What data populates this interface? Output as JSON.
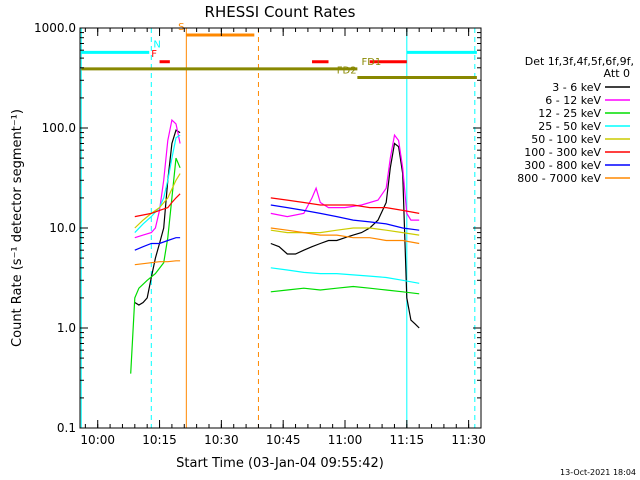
{
  "chart_data": {
    "type": "line",
    "title": "RHESSI Count Rates",
    "xlabel": "Start Time (03-Jan-04 09:55:42)",
    "ylabel": "Count Rate (s⁻¹ detector segment⁻¹)",
    "yscale": "log",
    "ylim": [
      0.1,
      1000
    ],
    "xlim": [
      "09:55:42",
      "11:33:00"
    ],
    "x_ticks": [
      "10:00",
      "10:15",
      "10:30",
      "10:45",
      "11:00",
      "11:15",
      "11:30"
    ],
    "y_ticks": [
      "0.1",
      "1.0",
      "10.0",
      "100.0",
      "1000.0"
    ],
    "legend_position": "right",
    "legend_header": "Det 1f,3f,4f,5f,6f,9f,",
    "legend_subheader": "Att 0",
    "timestamp": "13-Oct-2021 18:04",
    "series": [
      {
        "name": "3 - 6 keV",
        "color": "#000000",
        "segments": [
          {
            "x": [
              "10:09:00",
              "10:10:00",
              "10:11:00",
              "10:12:00",
              "10:13:00",
              "10:14:00",
              "10:15:00",
              "10:16:00",
              "10:17:00",
              "10:18:00",
              "10:19:00",
              "10:20:00"
            ],
            "y": [
              1.8,
              1.7,
              1.8,
              2.0,
              3.2,
              5.0,
              7.0,
              10.0,
              30.0,
              70.0,
              95.0,
              90.0
            ]
          },
          {
            "x": [
              "10:42:00",
              "10:44:00",
              "10:46:00",
              "10:48:00",
              "10:50:00",
              "10:52:00",
              "10:54:00",
              "10:56:00",
              "10:58:00",
              "11:00:00",
              "11:02:00",
              "11:04:00",
              "11:06:00",
              "11:08:00",
              "11:10:00",
              "11:11:00",
              "11:12:00",
              "11:13:00",
              "11:14:00",
              "11:15:00",
              "11:16:00",
              "11:17:00",
              "11:18:00"
            ],
            "y": [
              7.0,
              6.5,
              5.5,
              5.5,
              6.0,
              6.5,
              7.0,
              7.5,
              7.5,
              8.0,
              8.5,
              9.0,
              10.0,
              12.0,
              18.0,
              40.0,
              70.0,
              65.0,
              35.0,
              2.0,
              1.2,
              1.1,
              1.0
            ]
          }
        ]
      },
      {
        "name": "6 - 12 keV",
        "color": "#ff00ff",
        "segments": [
          {
            "x": [
              "10:09:00",
              "10:11:00",
              "10:13:00",
              "10:14:00",
              "10:15:00",
              "10:16:00",
              "10:17:00",
              "10:18:00",
              "10:19:00",
              "10:20:00"
            ],
            "y": [
              8.0,
              8.5,
              9.0,
              10.0,
              15.0,
              30.0,
              75.0,
              120.0,
              110.0,
              70.0
            ]
          },
          {
            "x": [
              "10:42:00",
              "10:46:00",
              "10:50:00",
              "10:52:00",
              "10:53:00",
              "10:54:00",
              "10:56:00",
              "11:00:00",
              "11:04:00",
              "11:08:00",
              "11:10:00",
              "11:11:00",
              "11:12:00",
              "11:13:00",
              "11:14:00",
              "11:15:00",
              "11:16:00",
              "11:18:00"
            ],
            "y": [
              14.0,
              13.0,
              14.0,
              20.0,
              25.0,
              18.0,
              16.0,
              16.0,
              17.0,
              19.0,
              25.0,
              50.0,
              85.0,
              75.0,
              40.0,
              14.0,
              12.0,
              12.0
            ]
          }
        ]
      },
      {
        "name": "12 - 25 keV",
        "color": "#00dd00",
        "segments": [
          {
            "x": [
              "10:08:00",
              "10:09:00",
              "10:10:00",
              "10:12:00",
              "10:14:00",
              "10:16:00",
              "10:17:00",
              "10:18:00",
              "10:19:00",
              "10:20:00"
            ],
            "y": [
              0.35,
              2.0,
              2.5,
              3.0,
              3.5,
              4.5,
              8.0,
              20.0,
              50.0,
              40.0
            ]
          },
          {
            "x": [
              "10:42:00",
              "10:46:00",
              "10:50:00",
              "10:54:00",
              "10:58:00",
              "11:02:00",
              "11:06:00",
              "11:10:00",
              "11:14:00",
              "11:18:00"
            ],
            "y": [
              2.3,
              2.4,
              2.5,
              2.4,
              2.5,
              2.6,
              2.5,
              2.4,
              2.3,
              2.2
            ]
          }
        ]
      },
      {
        "name": "25 - 50 keV",
        "color": "#00ffff",
        "segments": [
          {
            "x": [
              "10:09:00",
              "10:11:00",
              "10:13:00",
              "10:15:00",
              "10:16:00",
              "10:17:00",
              "10:18:00",
              "10:19:00",
              "10:20:00"
            ],
            "y": [
              9.0,
              11.0,
              13.0,
              16.0,
              20.0,
              30.0,
              50.0,
              80.0,
              85.0
            ]
          },
          {
            "x": [
              "10:42:00",
              "10:46:00",
              "10:50:00",
              "10:54:00",
              "10:58:00",
              "11:02:00",
              "11:06:00",
              "11:10:00",
              "11:14:00",
              "11:18:00"
            ],
            "y": [
              4.0,
              3.8,
              3.6,
              3.5,
              3.5,
              3.4,
              3.3,
              3.2,
              3.0,
              2.8
            ]
          }
        ]
      },
      {
        "name": "50 - 100 keV",
        "color": "#cccc00",
        "segments": [
          {
            "x": [
              "10:09:00",
              "10:11:00",
              "10:13:00",
              "10:15:00",
              "10:17:00",
              "10:19:00",
              "10:20:00"
            ],
            "y": [
              10.0,
              12.0,
              14.0,
              16.0,
              20.0,
              30.0,
              35.0
            ]
          },
          {
            "x": [
              "10:42:00",
              "10:46:00",
              "10:50:00",
              "10:54:00",
              "10:58:00",
              "11:02:00",
              "11:06:00",
              "11:10:00",
              "11:14:00",
              "11:18:00"
            ],
            "y": [
              9.5,
              9.0,
              9.0,
              9.0,
              9.5,
              10.0,
              10.0,
              9.5,
              9.0,
              8.5
            ]
          }
        ]
      },
      {
        "name": "100 - 300 keV",
        "color": "#ff0000",
        "segments": [
          {
            "x": [
              "10:09:00",
              "10:11:00",
              "10:13:00",
              "10:15:00",
              "10:17:00",
              "10:18:00",
              "10:19:00",
              "10:20:00"
            ],
            "y": [
              13.0,
              13.5,
              14.0,
              15.0,
              16.0,
              18.0,
              20.0,
              22.0
            ]
          },
          {
            "x": [
              "10:42:00",
              "10:46:00",
              "10:50:00",
              "10:54:00",
              "10:58:00",
              "11:02:00",
              "11:06:00",
              "11:10:00",
              "11:14:00",
              "11:18:00"
            ],
            "y": [
              20.0,
              19.0,
              18.0,
              17.0,
              17.0,
              17.0,
              16.0,
              16.0,
              15.0,
              14.0
            ]
          }
        ]
      },
      {
        "name": "300 - 800 keV",
        "color": "#0000ff",
        "segments": [
          {
            "x": [
              "10:09:00",
              "10:11:00",
              "10:13:00",
              "10:15:00",
              "10:17:00",
              "10:19:00",
              "10:20:00"
            ],
            "y": [
              6.0,
              6.5,
              7.0,
              7.0,
              7.5,
              8.0,
              8.0
            ]
          },
          {
            "x": [
              "10:42:00",
              "10:46:00",
              "10:50:00",
              "10:54:00",
              "10:58:00",
              "11:02:00",
              "11:06:00",
              "11:10:00",
              "11:14:00",
              "11:18:00"
            ],
            "y": [
              17.0,
              16.0,
              15.0,
              14.0,
              13.0,
              12.0,
              11.5,
              11.0,
              10.0,
              9.5
            ]
          }
        ]
      },
      {
        "name": "800 - 7000 keV",
        "color": "#ff8800",
        "segments": [
          {
            "x": [
              "10:09:00",
              "10:11:00",
              "10:13:00",
              "10:15:00",
              "10:17:00",
              "10:19:00",
              "10:20:00"
            ],
            "y": [
              4.3,
              4.4,
              4.5,
              4.6,
              4.6,
              4.7,
              4.7
            ]
          },
          {
            "x": [
              "10:42:00",
              "10:46:00",
              "10:50:00",
              "10:54:00",
              "10:58:00",
              "11:02:00",
              "11:06:00",
              "11:10:00",
              "11:14:00",
              "11:18:00"
            ],
            "y": [
              10.0,
              9.5,
              9.0,
              8.5,
              8.5,
              8.0,
              8.0,
              7.5,
              7.5,
              7.0
            ]
          }
        ]
      }
    ],
    "vertical_lines": [
      {
        "x": "09:56:00",
        "color": "#00ffff",
        "style": "solid"
      },
      {
        "x": "10:13:00",
        "color": "#00ffff",
        "style": "dashed"
      },
      {
        "x": "10:21:30",
        "color": "#ff8800",
        "style": "solid"
      },
      {
        "x": "10:39:00",
        "color": "#ff8800",
        "style": "dashed"
      },
      {
        "x": "11:15:00",
        "color": "#00ffff",
        "style": "solid"
      },
      {
        "x": "11:31:30",
        "color": "#00ffff",
        "style": "dashed"
      }
    ],
    "flag_bars": [
      {
        "label": "",
        "x1": "09:56:00",
        "x2": "10:12:30",
        "y": 570,
        "color": "#00ffff"
      },
      {
        "label": "",
        "x1": "11:15:00",
        "x2": "11:32:00",
        "y": 570,
        "color": "#00ffff"
      },
      {
        "label": "",
        "x1": "10:21:30",
        "x2": "10:38:00",
        "y": 850,
        "color": "#ff8800"
      },
      {
        "label": "",
        "x1": "10:15:00",
        "x2": "10:17:30",
        "y": 460,
        "color": "#ff0000"
      },
      {
        "label": "",
        "x1": "10:52:00",
        "x2": "10:56:00",
        "y": 460,
        "color": "#ff0000"
      },
      {
        "label": "",
        "x1": "11:06:00",
        "x2": "11:15:00",
        "y": 460,
        "color": "#ff0000"
      },
      {
        "label": "",
        "x1": "09:56:00",
        "x2": "11:03:00",
        "y": 390,
        "color": "#888800"
      },
      {
        "label": "",
        "x1": "11:03:00",
        "x2": "11:32:00",
        "y": 320,
        "color": "#888800"
      }
    ],
    "flag_labels": [
      {
        "text": "N",
        "x": "10:13:30",
        "y": 580,
        "color": "#00ffff"
      },
      {
        "text": "S",
        "x": "10:19:30",
        "y": 870,
        "color": "#ff8800"
      },
      {
        "text": "F",
        "x": "10:13:00",
        "y": 470,
        "color": "#ff0000"
      },
      {
        "text": "FD1",
        "x": "11:04:00",
        "y": 390,
        "color": "#888800"
      },
      {
        "text": "FD2",
        "x": "10:58:00",
        "y": 320,
        "color": "#888800"
      }
    ]
  }
}
